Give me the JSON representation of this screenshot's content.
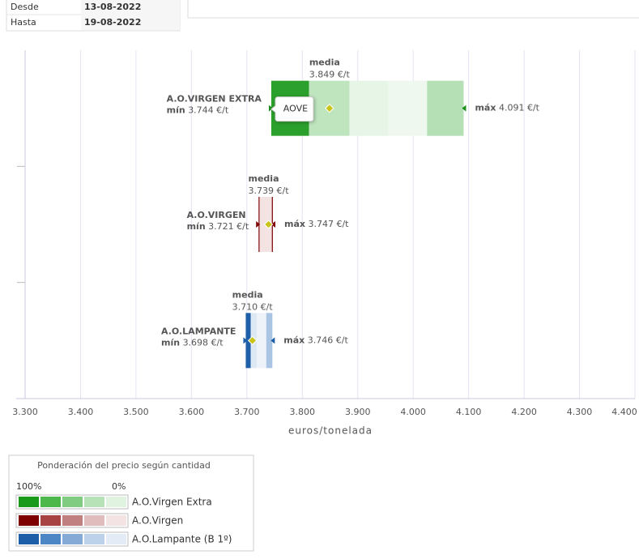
{
  "header": {
    "rows": [
      [
        "Desde",
        "13-08-2022"
      ],
      [
        "Hasta",
        "19-08-2022"
      ]
    ]
  },
  "chart_data": {
    "type": "range",
    "xlabel": "euros/tonelada",
    "xlim": [
      3300,
      4400
    ],
    "xticks": [
      {
        "value": 3300,
        "label": "3.300"
      },
      {
        "value": 3400,
        "label": "3.400"
      },
      {
        "value": 3500,
        "label": "3.500"
      },
      {
        "value": 3600,
        "label": "3.600"
      },
      {
        "value": 3700,
        "label": "3.700"
      },
      {
        "value": 3800,
        "label": "3.800"
      },
      {
        "value": 3900,
        "label": "3.900"
      },
      {
        "value": 4000,
        "label": "4.000"
      },
      {
        "value": 4100,
        "label": "4.100"
      },
      {
        "value": 4200,
        "label": "4.200"
      },
      {
        "value": 4300,
        "label": "4.300"
      },
      {
        "value": 4400,
        "label": "4.400"
      }
    ],
    "grid": true,
    "min_prefix": "mín",
    "max_prefix": "máx",
    "mean_prefix": "media",
    "tooltip_label": "AOVE",
    "series": [
      {
        "name": "A.O.VIRGEN EXTRA",
        "min": 3744,
        "min_label": "3.744 €/t",
        "max": 4091,
        "max_label": "4.091 €/t",
        "mean": 3849,
        "mean_label": "3.849 €/t",
        "marker_color": "#1a8f1a",
        "band_edges": [
          3744,
          3812,
          3885,
          3955,
          4025,
          4091
        ],
        "band_colors": [
          "#2ca02c",
          "#bfe5bf",
          "#e6f5e6",
          "#eef8ee",
          "#b5dfb5"
        ]
      },
      {
        "name": "A.O.VIRGEN",
        "min": 3721,
        "min_label": "3.721 €/t",
        "max": 3747,
        "max_label": "3.747 €/t",
        "mean": 3739,
        "mean_label": "3.739 €/t",
        "marker_color": "#7f0000",
        "band_edges": [
          3721,
          3723,
          3745,
          3747
        ],
        "band_colors": [
          "#8b1a1a",
          "#f3e3e3",
          "#8b1a1a"
        ]
      },
      {
        "name": "A.O.LAMPANTE",
        "min": 3698,
        "min_label": "3.698 €/t",
        "max": 3746,
        "max_label": "3.746 €/t",
        "mean": 3710,
        "mean_label": "3.710 €/t",
        "marker_color": "#1c5ea8",
        "band_edges": [
          3698,
          3707,
          3718,
          3735,
          3746
        ],
        "band_colors": [
          "#1f5fa8",
          "#dde8f5",
          "#eef3fa",
          "#aac4e4"
        ]
      }
    ]
  },
  "legend": {
    "title": "Ponderación del precio según cantidad",
    "high": "100%",
    "low": "0%",
    "rows": [
      {
        "name": "A.O.Virgen Extra",
        "colors": [
          "#1a9a1a",
          "#4cb84c",
          "#80cc80",
          "#b7e2b7",
          "#e0f2e0"
        ]
      },
      {
        "name": "A.O.Virgen",
        "colors": [
          "#7f0000",
          "#a84343",
          "#c08080",
          "#e0bcbc",
          "#f3e3e3"
        ]
      },
      {
        "name": "A.O.Lampante (B 1º)",
        "colors": [
          "#1c5ea8",
          "#4d86c4",
          "#86aad6",
          "#bcd1ea",
          "#e3ecf6"
        ]
      }
    ]
  }
}
